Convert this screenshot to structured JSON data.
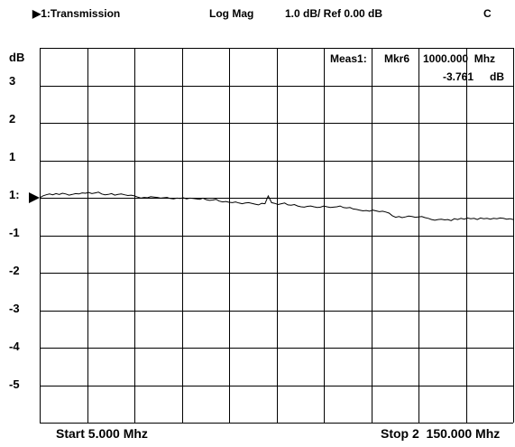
{
  "header": {
    "trace_marker_symbol": "▶",
    "trace_label": "1:Transmission",
    "format": "Log Mag",
    "scale": "1.0 dB/ Ref 0.00 dB",
    "channel_flag": "C"
  },
  "measurement": {
    "meas_label": "Meas1:",
    "marker_label": "Mkr6",
    "marker_frequency": "1000.000  Mhz",
    "marker_value": "-3.761",
    "marker_unit": "dB"
  },
  "footer": {
    "start_label": "Start 5.000 Mhz",
    "stop_label": "Stop 2  150.000 Mhz"
  },
  "reference_marker_label": "1:",
  "colors": {
    "trace": "#000000",
    "grid": "#000000",
    "background": "#ffffff"
  },
  "chart_data": {
    "type": "line",
    "ylabel": "dB",
    "y_tick_labels": [
      "3",
      "2",
      "1",
      "1:",
      "-1",
      "-2",
      "-3",
      "-4",
      "-5"
    ],
    "ylim": [
      -6,
      4
    ],
    "xlim": [
      5,
      150
    ],
    "grid": true,
    "x_divisions": 10,
    "y_divisions": 10,
    "reference_level": 0,
    "series": [
      {
        "x": [
          5,
          6,
          7,
          8,
          9,
          10,
          11,
          12,
          13,
          14,
          15,
          16,
          17,
          18,
          19,
          20,
          21,
          22,
          23,
          24,
          25,
          26,
          27,
          28,
          29,
          30,
          31,
          32,
          33,
          34,
          35,
          36,
          37,
          38,
          39,
          40,
          41,
          42,
          43,
          44,
          45,
          46,
          47,
          48,
          49,
          50,
          51,
          52,
          53,
          54,
          55,
          56,
          57,
          58,
          59,
          60,
          61,
          62,
          63,
          64,
          65,
          66,
          67,
          68,
          69,
          70,
          71,
          72,
          73,
          74,
          75,
          76,
          77,
          78,
          79,
          80,
          81,
          82,
          83,
          84,
          85,
          86,
          87,
          88,
          89,
          90,
          91,
          92,
          93,
          94,
          95,
          96,
          97,
          98,
          99,
          100,
          101,
          102,
          103,
          104,
          105,
          106,
          107,
          108,
          109,
          110,
          111,
          112,
          113,
          114,
          115,
          116,
          117,
          118,
          119,
          120,
          121,
          122,
          123,
          124,
          125,
          126,
          127,
          128,
          129,
          130,
          131,
          132,
          133,
          134,
          135,
          136,
          137,
          138,
          139,
          140,
          141,
          142,
          143,
          144,
          145,
          146,
          147,
          148,
          149,
          150
        ],
        "y": [
          0.0,
          0.05,
          0.08,
          0.1,
          0.08,
          0.11,
          0.09,
          0.12,
          0.1,
          0.07,
          0.09,
          0.11,
          0.1,
          0.13,
          0.12,
          0.14,
          0.11,
          0.13,
          0.15,
          0.1,
          0.08,
          0.09,
          0.11,
          0.07,
          0.09,
          0.1,
          0.08,
          0.06,
          0.07,
          0.05,
          0.02,
          -0.01,
          0.01,
          0.0,
          0.03,
          0.02,
          0.01,
          -0.01,
          0.0,
          0.01,
          -0.02,
          -0.03,
          -0.01,
          -0.02,
          0.0,
          -0.03,
          -0.01,
          -0.02,
          -0.03,
          -0.04,
          -0.01,
          -0.05,
          -0.07,
          -0.06,
          -0.04,
          -0.09,
          -0.11,
          -0.1,
          -0.12,
          -0.13,
          -0.11,
          -0.14,
          -0.16,
          -0.14,
          -0.13,
          -0.15,
          -0.17,
          -0.19,
          -0.15,
          -0.16,
          0.05,
          -0.13,
          -0.15,
          -0.18,
          -0.16,
          -0.14,
          -0.19,
          -0.2,
          -0.18,
          -0.22,
          -0.24,
          -0.25,
          -0.23,
          -0.22,
          -0.24,
          -0.26,
          -0.25,
          -0.22,
          -0.24,
          -0.26,
          -0.25,
          -0.24,
          -0.22,
          -0.26,
          -0.27,
          -0.26,
          -0.3,
          -0.31,
          -0.33,
          -0.35,
          -0.34,
          -0.36,
          -0.33,
          -0.35,
          -0.37,
          -0.36,
          -0.38,
          -0.41,
          -0.48,
          -0.52,
          -0.5,
          -0.53,
          -0.51,
          -0.49,
          -0.5,
          -0.52,
          -0.51,
          -0.5,
          -0.53,
          -0.55,
          -0.58,
          -0.6,
          -0.58,
          -0.57,
          -0.59,
          -0.58,
          -0.61,
          -0.56,
          -0.58,
          -0.55,
          -0.57,
          -0.54,
          -0.56,
          -0.55,
          -0.58,
          -0.54,
          -0.56,
          -0.55,
          -0.57,
          -0.55,
          -0.56,
          -0.54,
          -0.55,
          -0.57,
          -0.56,
          -0.58
        ]
      }
    ]
  }
}
